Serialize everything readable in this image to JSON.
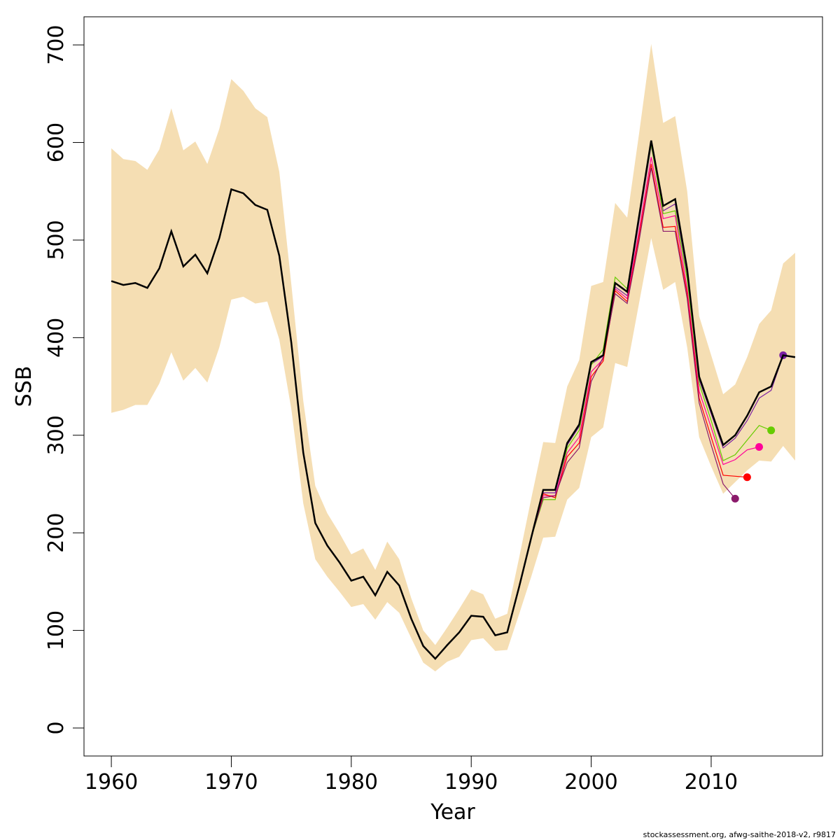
{
  "chart_data": {
    "type": "line",
    "xlabel": "Year",
    "ylabel": "SSB",
    "footer": "stockassessment.org, afwg-saithe-2018-v2, r9817",
    "xlim": [
      1957.72,
      2019.28
    ],
    "ylim": [
      -28.7,
      728.8
    ],
    "xticks": [
      1960,
      1970,
      1980,
      1990,
      2000,
      2010
    ],
    "yticks": [
      0,
      100,
      200,
      300,
      400,
      500,
      600,
      700
    ],
    "x": [
      1960,
      1961,
      1962,
      1963,
      1964,
      1965,
      1966,
      1967,
      1968,
      1969,
      1970,
      1971,
      1972,
      1973,
      1974,
      1975,
      1976,
      1977,
      1978,
      1979,
      1980,
      1981,
      1982,
      1983,
      1984,
      1985,
      1986,
      1987,
      1988,
      1989,
      1990,
      1991,
      1992,
      1993,
      1994,
      1995,
      1996,
      1997,
      1998,
      1999,
      2000,
      2001,
      2002,
      2003,
      2004,
      2005,
      2006,
      2007,
      2008,
      2009,
      2010,
      2011,
      2012,
      2013,
      2014,
      2015,
      2016,
      2017
    ],
    "band": {
      "color": "#f5deb3",
      "upper": [
        594,
        583,
        581,
        572,
        593,
        635,
        592,
        601,
        578,
        614,
        665,
        653,
        635,
        626,
        570,
        455,
        335,
        248,
        220,
        200,
        178,
        184,
        162,
        191,
        173,
        133,
        100,
        85,
        103,
        122,
        142,
        137,
        112,
        117,
        175,
        235,
        293,
        292,
        350,
        377,
        453,
        457,
        538,
        523,
        610,
        701,
        620,
        627,
        550,
        422,
        382,
        342,
        352,
        380,
        414,
        428,
        476,
        487
      ],
      "lower": [
        323,
        326,
        331,
        331,
        353,
        385,
        356,
        369,
        354,
        390,
        439,
        442,
        435,
        437,
        398,
        327,
        230,
        173,
        155,
        140,
        124,
        127,
        111,
        129,
        118,
        92,
        67,
        58,
        68,
        73,
        90,
        92,
        79,
        80,
        117,
        155,
        195,
        196,
        234,
        246,
        298,
        308,
        374,
        370,
        436,
        502,
        449,
        457,
        390,
        298,
        268,
        240,
        252,
        264,
        274,
        273,
        289,
        274
      ]
    },
    "series": [
      {
        "color": "#7b1fa2",
        "values": [
          458,
          454,
          456,
          451,
          471,
          509,
          473,
          485,
          466,
          502,
          552,
          548,
          536,
          531,
          484,
          395,
          282,
          210,
          187,
          170,
          151,
          155,
          136,
          160,
          146,
          112,
          84,
          71,
          85,
          98,
          115,
          114,
          95,
          98,
          145,
          195,
          241,
          241,
          290,
          309,
          373,
          381,
          452,
          443,
          520,
          597,
          530,
          537,
          465,
          357,
          322,
          287,
          297,
          315,
          338,
          346,
          382,
          null
        ]
      },
      {
        "color": "#66cc00",
        "values": [
          458,
          454,
          456,
          451,
          471,
          509,
          473,
          485,
          466,
          502,
          552,
          548,
          536,
          531,
          484,
          395,
          282,
          210,
          187,
          170,
          151,
          155,
          136,
          160,
          146,
          112,
          84,
          71,
          85,
          98,
          115,
          114,
          95,
          98,
          145,
          195,
          234,
          234,
          287,
          305,
          372,
          388,
          462,
          450,
          523,
          598,
          527,
          530,
          460,
          353,
          315,
          274,
          280,
          295,
          310,
          305,
          null,
          null
        ]
      },
      {
        "color": "#ff0099",
        "values": [
          458,
          454,
          456,
          451,
          471,
          509,
          473,
          485,
          466,
          502,
          552,
          548,
          536,
          531,
          484,
          395,
          282,
          210,
          187,
          170,
          151,
          155,
          136,
          160,
          146,
          112,
          84,
          71,
          85,
          98,
          115,
          114,
          95,
          98,
          145,
          195,
          238,
          238,
          282,
          298,
          365,
          378,
          450,
          440,
          510,
          585,
          522,
          525,
          450,
          345,
          308,
          270,
          275,
          285,
          288,
          null,
          null,
          null
        ]
      },
      {
        "color": "#ff0000",
        "values": [
          458,
          454,
          456,
          451,
          471,
          509,
          473,
          485,
          466,
          502,
          552,
          548,
          536,
          531,
          484,
          395,
          282,
          210,
          187,
          170,
          151,
          155,
          136,
          160,
          146,
          112,
          84,
          71,
          85,
          98,
          115,
          114,
          95,
          98,
          145,
          195,
          240,
          236,
          278,
          292,
          360,
          376,
          448,
          437,
          505,
          578,
          513,
          514,
          445,
          338,
          298,
          259,
          258,
          257,
          null,
          null,
          null,
          null
        ]
      },
      {
        "color": "#8b1a6b",
        "values": [
          458,
          454,
          456,
          451,
          471,
          509,
          473,
          485,
          466,
          502,
          552,
          548,
          536,
          531,
          484,
          395,
          282,
          210,
          187,
          170,
          151,
          155,
          136,
          160,
          146,
          112,
          84,
          71,
          85,
          98,
          115,
          114,
          95,
          98,
          145,
          195,
          236,
          238,
          272,
          287,
          355,
          380,
          445,
          435,
          500,
          574,
          509,
          509,
          440,
          333,
          290,
          250,
          235,
          null,
          null,
          null,
          null,
          null
        ]
      },
      {
        "color": "#000000",
        "values": [
          458,
          454,
          456,
          451,
          471,
          509,
          473,
          485,
          466,
          502,
          552,
          548,
          536,
          531,
          484,
          395,
          282,
          210,
          187,
          170,
          151,
          155,
          136,
          160,
          146,
          112,
          84,
          71,
          85,
          98,
          115,
          114,
          95,
          98,
          145,
          195,
          244,
          244,
          292,
          311,
          375,
          382,
          456,
          447,
          525,
          602,
          535,
          542,
          470,
          360,
          325,
          290,
          300,
          320,
          344,
          350,
          382,
          380
        ]
      }
    ]
  }
}
